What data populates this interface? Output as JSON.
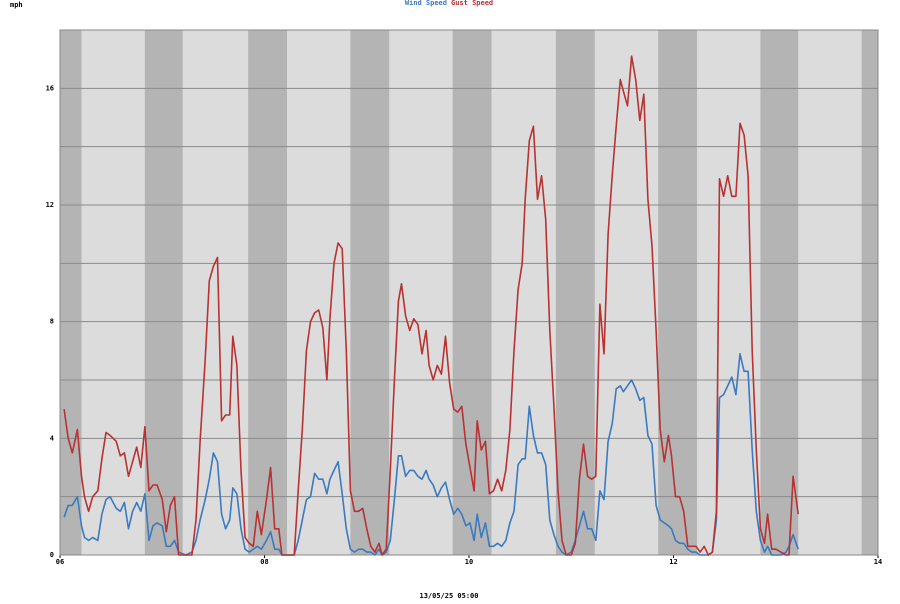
{
  "chart_data": {
    "type": "line",
    "y_unit": "mph",
    "xlabel": "13/05/25 05:00",
    "xlim": [
      6,
      14
    ],
    "xticks": [
      {
        "value": 6,
        "label": "06"
      },
      {
        "value": 8,
        "label": "08"
      },
      {
        "value": 10,
        "label": "10"
      },
      {
        "value": 12,
        "label": "12"
      },
      {
        "value": 14,
        "label": "14"
      }
    ],
    "ylim": [
      0,
      18
    ],
    "yticks": [
      0,
      4,
      8,
      12,
      16
    ],
    "ygrid": [
      2,
      6,
      10,
      14
    ],
    "grid": true,
    "legend": "top",
    "shaded": [
      [
        6,
        6.21
      ],
      [
        6.83,
        7.2
      ],
      [
        7.84,
        8.22
      ],
      [
        8.84,
        9.22
      ],
      [
        9.84,
        10.22
      ],
      [
        10.85,
        11.23
      ],
      [
        11.85,
        12.23
      ],
      [
        12.85,
        13.22
      ],
      [
        13.84,
        14
      ]
    ],
    "x": [
      6.04,
      6.08,
      6.12,
      6.17,
      6.21,
      6.24,
      6.28,
      6.32,
      6.37,
      6.41,
      6.45,
      6.49,
      6.55,
      6.59,
      6.63,
      6.67,
      6.71,
      6.75,
      6.79,
      6.83,
      6.87,
      6.91,
      6.95,
      7.0,
      7.04,
      7.08,
      7.12,
      7.16,
      7.23,
      7.29,
      7.33,
      7.37,
      7.42,
      7.46,
      7.5,
      7.54,
      7.58,
      7.62,
      7.66,
      7.69,
      7.73,
      7.77,
      7.81,
      7.85,
      7.89,
      7.93,
      7.97,
      8.02,
      8.06,
      8.1,
      8.14,
      8.17,
      8.29,
      8.33,
      8.37,
      8.41,
      8.45,
      8.49,
      8.53,
      8.57,
      8.61,
      8.64,
      8.68,
      8.72,
      8.76,
      8.8,
      8.84,
      8.88,
      8.92,
      8.96,
      9.0,
      9.04,
      9.08,
      9.12,
      9.15,
      9.19,
      9.23,
      9.27,
      9.31,
      9.34,
      9.38,
      9.42,
      9.46,
      9.5,
      9.54,
      9.58,
      9.61,
      9.65,
      9.69,
      9.73,
      9.77,
      9.81,
      9.85,
      9.89,
      9.93,
      9.97,
      10.01,
      10.05,
      10.08,
      10.12,
      10.16,
      10.2,
      10.24,
      10.28,
      10.32,
      10.36,
      10.4,
      10.44,
      10.48,
      10.52,
      10.55,
      10.59,
      10.63,
      10.67,
      10.71,
      10.75,
      10.79,
      10.83,
      10.87,
      10.91,
      10.95,
      11.0,
      11.04,
      11.08,
      11.12,
      11.16,
      11.2,
      11.24,
      11.28,
      11.32,
      11.36,
      11.4,
      11.44,
      11.48,
      11.51,
      11.55,
      11.59,
      11.63,
      11.67,
      11.71,
      11.75,
      11.79,
      11.83,
      11.87,
      11.91,
      11.95,
      11.98,
      12.02,
      12.06,
      12.1,
      12.14,
      12.18,
      12.22,
      12.26,
      12.3,
      12.34,
      12.38,
      12.42,
      12.45,
      12.49,
      12.53,
      12.57,
      12.61,
      12.65,
      12.69,
      12.73,
      12.77,
      12.81,
      12.85,
      12.89,
      12.92,
      12.96,
      13.0,
      13.05,
      13.1,
      13.13,
      13.17,
      13.22
    ],
    "series": [
      {
        "name": "Wind Speed",
        "color": "#3a7abf",
        "values": [
          1.3,
          1.7,
          1.7,
          2.0,
          1.0,
          0.6,
          0.5,
          0.6,
          0.5,
          1.4,
          1.9,
          2.0,
          1.6,
          1.5,
          1.8,
          0.9,
          1.5,
          1.8,
          1.5,
          2.1,
          0.5,
          1.0,
          1.1,
          1.0,
          0.3,
          0.3,
          0.5,
          0.1,
          0,
          0.1,
          0.5,
          1.2,
          1.9,
          2.6,
          3.5,
          3.2,
          1.4,
          0.9,
          1.2,
          2.3,
          2.1,
          0.9,
          0.2,
          0.1,
          0.2,
          0.3,
          0.2,
          0.5,
          0.8,
          0.2,
          0.2,
          0,
          0,
          0.5,
          1.2,
          1.9,
          2.0,
          2.8,
          2.6,
          2.6,
          2.1,
          2.6,
          2.9,
          3.2,
          2.1,
          0.9,
          0.2,
          0.1,
          0.2,
          0.2,
          0.1,
          0.1,
          0,
          0.2,
          0,
          0.1,
          0.5,
          1.9,
          3.4,
          3.4,
          2.7,
          2.9,
          2.9,
          2.7,
          2.6,
          2.9,
          2.6,
          2.4,
          2.0,
          2.3,
          2.5,
          1.9,
          1.4,
          1.6,
          1.4,
          1.0,
          1.1,
          0.5,
          1.4,
          0.6,
          1.1,
          0.3,
          0.3,
          0.4,
          0.3,
          0.5,
          1.1,
          1.5,
          3.1,
          3.3,
          3.3,
          5.1,
          4.1,
          3.5,
          3.5,
          3.1,
          1.2,
          0.7,
          0.3,
          0.1,
          0,
          0.1,
          0.5,
          1.0,
          1.5,
          0.9,
          0.9,
          0.5,
          2.2,
          1.9,
          3.9,
          4.5,
          5.7,
          5.8,
          5.6,
          5.8,
          6.0,
          5.7,
          5.3,
          5.4,
          4.1,
          3.8,
          1.7,
          1.2,
          1.1,
          1.0,
          0.9,
          0.5,
          0.4,
          0.4,
          0.2,
          0.1,
          0.1,
          0,
          0,
          0,
          0.1,
          1.2,
          5.4,
          5.5,
          5.8,
          6.1,
          5.5,
          6.9,
          6.3,
          6.3,
          3.6,
          1.5,
          0.5,
          0.1,
          0.3,
          0,
          0,
          0,
          0.1,
          0.3,
          0.7,
          0.2
        ]
      },
      {
        "name": "Gust Speed",
        "color": "#b83232",
        "values": [
          5.0,
          4.0,
          3.5,
          4.3,
          2.7,
          2.0,
          1.5,
          2.0,
          2.2,
          3.3,
          4.2,
          4.1,
          3.9,
          3.4,
          3.5,
          2.7,
          3.2,
          3.7,
          3.0,
          4.4,
          2.2,
          2.4,
          2.4,
          1.9,
          0.8,
          1.7,
          2.0,
          0,
          0,
          0,
          1.2,
          3.9,
          6.7,
          9.4,
          9.9,
          10.2,
          4.6,
          4.8,
          4.8,
          7.5,
          6.5,
          2.9,
          0.6,
          0.4,
          0.3,
          1.5,
          0.7,
          1.9,
          3.0,
          0.9,
          0.9,
          0,
          0,
          2.2,
          4.3,
          7.0,
          8.0,
          8.3,
          8.4,
          7.8,
          6.0,
          8.1,
          10.0,
          10.7,
          10.5,
          7.0,
          2.2,
          1.5,
          1.5,
          1.6,
          0.9,
          0.3,
          0.1,
          0.4,
          0,
          0.2,
          2.9,
          6.0,
          8.7,
          9.3,
          8.2,
          7.7,
          8.1,
          7.9,
          6.9,
          7.7,
          6.5,
          6.0,
          6.5,
          6.2,
          7.5,
          5.9,
          5.0,
          4.9,
          5.1,
          3.8,
          3.0,
          2.2,
          4.6,
          3.6,
          3.9,
          2.1,
          2.2,
          2.6,
          2.2,
          2.9,
          4.3,
          7.0,
          9.1,
          10.0,
          12.2,
          14.2,
          14.7,
          12.2,
          13.0,
          11.5,
          7.7,
          5.1,
          2.2,
          0.5,
          0,
          0,
          0.4,
          2.6,
          3.8,
          2.7,
          2.6,
          2.7,
          8.6,
          6.9,
          11.0,
          13.0,
          14.7,
          16.3,
          15.9,
          15.4,
          17.1,
          16.3,
          14.9,
          15.8,
          12.2,
          10.6,
          7.7,
          4.3,
          3.2,
          4.1,
          3.4,
          2.0,
          2.0,
          1.5,
          0.3,
          0.3,
          0.3,
          0.1,
          0.3,
          0,
          0.1,
          1.5,
          12.9,
          12.3,
          13.0,
          12.3,
          12.3,
          14.8,
          14.4,
          13.0,
          7.0,
          3.6,
          0.9,
          0.4,
          1.4,
          0.2,
          0.2,
          0.1,
          0,
          0,
          2.7,
          1.4
        ]
      }
    ]
  }
}
